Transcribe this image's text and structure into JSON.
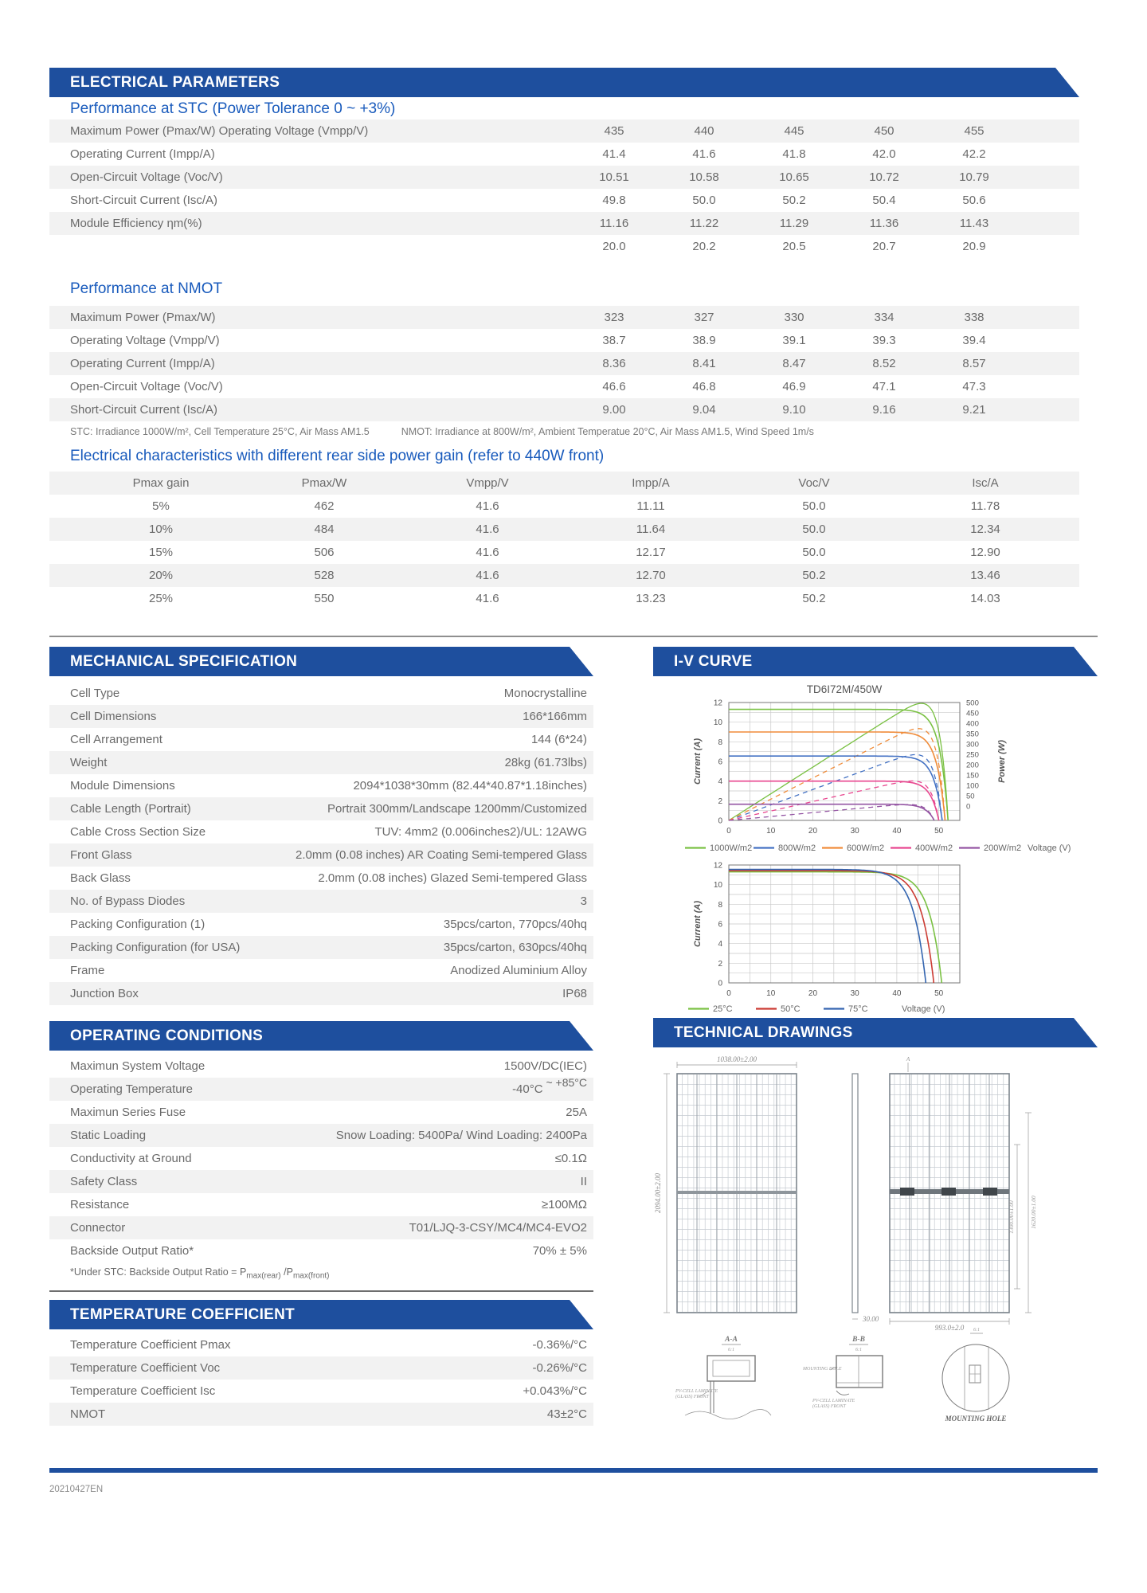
{
  "page": {
    "footer_code": "20210427EN"
  },
  "colors": {
    "banner_blue": "#1E4F9E",
    "heading_blue": "#185ABC",
    "stripe_gray": "#F2F2F2",
    "text_gray": "#6a6a6a",
    "curve_green": "#7AC143",
    "curve_blue": "#4472C4",
    "curve_orange": "#F08C3A",
    "curve_pink": "#E8468F",
    "curve_purple": "#9455A3",
    "curve_red": "#CC3B33",
    "curve_tblue": "#3465B0"
  },
  "electrical": {
    "banner": "ELECTRICAL PARAMETERS",
    "stc": {
      "heading": "Performance at STC (Power Tolerance 0 ~ +3%)",
      "rows": [
        {
          "label": "Maximum Power (Pmax/W) Operating Voltage (Vmpp/V)",
          "values": [
            "435",
            "440",
            "445",
            "450",
            "455"
          ]
        },
        {
          "label": "Operating Current (Impp/A)",
          "values": [
            "41.4",
            "41.6",
            "41.8",
            "42.0",
            "42.2"
          ]
        },
        {
          "label": "Open-Circuit Voltage (Voc/V)",
          "values": [
            "10.51",
            "10.58",
            "10.65",
            "10.72",
            "10.79"
          ]
        },
        {
          "label": "Short-Circuit Current (Isc/A)",
          "values": [
            "49.8",
            "50.0",
            "50.2",
            "50.4",
            "50.6"
          ]
        },
        {
          "label": "Module Efficiency ηm(%)",
          "values": [
            "11.16",
            "11.22",
            "11.29",
            "11.36",
            "11.43"
          ]
        },
        {
          "label": "",
          "values": [
            "20.0",
            "20.2",
            "20.5",
            "20.7",
            "20.9"
          ]
        }
      ]
    },
    "nmot": {
      "heading": "Performance at NMOT",
      "rows": [
        {
          "label": "Maximum Power (Pmax/W)",
          "values": [
            "323",
            "327",
            "330",
            "334",
            "338"
          ]
        },
        {
          "label": "Operating Voltage (Vmpp/V)",
          "values": [
            "38.7",
            "38.9",
            "39.1",
            "39.3",
            "39.4"
          ]
        },
        {
          "label": "Operating Current (Impp/A)",
          "values": [
            "8.36",
            "8.41",
            "8.47",
            "8.52",
            "8.57"
          ]
        },
        {
          "label": "Open-Circuit Voltage (Voc/V)",
          "values": [
            "46.6",
            "46.8",
            "46.9",
            "47.1",
            "47.3"
          ]
        },
        {
          "label": "Short-Circuit Current (Isc/A)",
          "values": [
            "9.00",
            "9.04",
            "9.10",
            "9.16",
            "9.21"
          ]
        }
      ]
    },
    "footnote_stc": "STC: Irradiance 1000W/m², Cell Temperature 25°C, Air Mass AM1.5",
    "footnote_nmot": "NMOT: Irradiance at 800W/m², Ambient Temperatue 20°C, Air Mass AM1.5, Wind Speed 1m/s",
    "gain": {
      "heading": "Electrical characteristics with different rear side power gain (refer to 440W front)",
      "headers": [
        "Pmax gain",
        "Pmax/W",
        "Vmpp/V",
        "Impp/A",
        "Voc/V",
        "Isc/A"
      ],
      "rows": [
        [
          "5%",
          "462",
          "41.6",
          "11.11",
          "50.0",
          "11.78"
        ],
        [
          "10%",
          "484",
          "41.6",
          "11.64",
          "50.0",
          "12.34"
        ],
        [
          "15%",
          "506",
          "41.6",
          "12.17",
          "50.0",
          "12.90"
        ],
        [
          "20%",
          "528",
          "41.6",
          "12.70",
          "50.2",
          "13.46"
        ],
        [
          "25%",
          "550",
          "41.6",
          "13.23",
          "50.2",
          "14.03"
        ]
      ]
    }
  },
  "mechanical": {
    "banner": "MECHANICAL SPECIFICATION",
    "rows": [
      {
        "label": "Cell Type",
        "value": "Monocrystalline"
      },
      {
        "label": "Cell Dimensions",
        "value": "166*166mm"
      },
      {
        "label": "Cell Arrangement",
        "value": "144 (6*24)"
      },
      {
        "label": "Weight",
        "value": "28kg (61.73lbs)"
      },
      {
        "label": "Module Dimensions",
        "value": "2094*1038*30mm (82.44*40.87*1.18inches)"
      },
      {
        "label": "Cable Length (Portrait)",
        "value": "Portrait 300mm/Landscape 1200mm/Customized"
      },
      {
        "label": "Cable Cross Section Size",
        "value": "TUV: 4mm2 (0.006inches2)/UL: 12AWG"
      },
      {
        "label": "Front Glass",
        "value": "2.0mm (0.08 inches) AR Coating Semi-tempered Glass"
      },
      {
        "label": "Back Glass",
        "value": "2.0mm (0.08 inches) Glazed Semi-tempered Glass"
      },
      {
        "label": "No. of Bypass Diodes",
        "value": "3"
      },
      {
        "label": "Packing Configuration (1)",
        "value": "35pcs/carton, 770pcs/40hq"
      },
      {
        "label": "Packing Configuration (for USA)",
        "value": "35pcs/carton, 630pcs/40hq"
      },
      {
        "label": "Frame",
        "value": "Anodized Aluminium Alloy"
      },
      {
        "label": "Junction Box",
        "value": "IP68"
      }
    ]
  },
  "operating": {
    "banner": "OPERATING CONDITIONS",
    "rows": [
      {
        "label": "Maximun System Voltage",
        "value": "1500V/DC(IEC)"
      },
      {
        "label": "Operating Temperature",
        "value": "-40°C",
        "value_raised": "~ +85°C"
      },
      {
        "label": "Maximun Series Fuse",
        "value": "25A"
      },
      {
        "label": "Static Loading",
        "value": "Snow Loading: 5400Pa/ Wind Loading: 2400Pa"
      },
      {
        "label": "Conductivity at Ground",
        "value": "≤0.1Ω"
      },
      {
        "label": "Safety Class",
        "value": "II"
      },
      {
        "label": "Resistance",
        "value": "≥100MΩ"
      },
      {
        "label": "Connector",
        "value": "T01/LJQ-3-CSY/MC4/MC4-EVO2"
      },
      {
        "label": "Backside Output Ratio*",
        "value": "70% ± 5%"
      }
    ],
    "footnote": {
      "prefix": "*Under STC: Backside Output Ratio = P",
      "sub1": "max(rear)",
      "mid": " /P",
      "sub2": "max(front)"
    }
  },
  "temperature": {
    "banner": "TEMPERATURE COEFFICIENT",
    "rows": [
      {
        "label": "Temperature Coefficient Pmax",
        "value": "-0.36%/°C"
      },
      {
        "label": "Temperature Coefficient Voc",
        "value": "-0.26%/°C"
      },
      {
        "label": "Temperature Coefficient Isc",
        "value": "+0.043%/°C"
      },
      {
        "label": "NMOT",
        "value": "43±2°C"
      }
    ]
  },
  "ivcurve": {
    "banner": "I-V CURVE"
  },
  "drawings": {
    "banner": "TECHNICAL DRAWINGS",
    "front_width_dim": "1038.00±2.00",
    "front_height_dim": "2094.00±2.00",
    "side_thickness_dim": "30.00",
    "rear_width_dim": "993.0±2.0",
    "rear_dim_inner": "1300.00±1.00",
    "rear_dim_outer": "1620.00±1.00",
    "section_marker": "A",
    "section_a_label": "A-A",
    "section_b_label": "B-B",
    "scale_label": "6:1",
    "mounting_hole_label": "MOUNTING HOLE",
    "mounting_hole_caption": "MOUNTING HOLE",
    "laminate_note_line1": "PV-CELL LAMINATE",
    "laminate_note_line2": "(GLASS) FRONT"
  },
  "chart_data": [
    {
      "type": "line",
      "title": "TD6I72M/450W",
      "xlabel": "Voltage (V)",
      "ylabel": "Current (A)",
      "y2label": "Power (W)",
      "xlim": [
        0,
        55
      ],
      "ylim": [
        0,
        12
      ],
      "y2lim": [
        0,
        500
      ],
      "xticks": [
        0,
        10,
        20,
        30,
        40,
        50
      ],
      "yticks": [
        0,
        2,
        4,
        6,
        8,
        10,
        12
      ],
      "y2ticks": [
        500,
        450,
        400,
        350,
        300,
        250,
        200,
        150,
        100,
        50,
        0
      ],
      "grid": true,
      "legend_position": "bottom",
      "knee": 2.0,
      "show_power": true,
      "series": [
        {
          "name": "1000W/m2",
          "color": "#7AC143",
          "isc": 11.3,
          "voc": 52.2,
          "power_solid": true
        },
        {
          "name": "800W/m2",
          "color": "#4472C4",
          "isc": 6.55,
          "voc": 50.8,
          "power_solid": false
        },
        {
          "name": "600W/m2",
          "color": "#F08C3A",
          "isc": 9.0,
          "voc": 51.5,
          "power_solid": false
        },
        {
          "name": "400W/m2",
          "color": "#E8468F",
          "isc": 4.0,
          "voc": 50.0,
          "power_solid": false
        },
        {
          "name": "200W/m2",
          "color": "#9455A3",
          "isc": 1.65,
          "voc": 48.9,
          "power_solid": false
        }
      ]
    },
    {
      "type": "line",
      "title": "",
      "xlabel": "Voltage (V)",
      "ylabel": "Current (A)",
      "xlim": [
        0,
        55
      ],
      "ylim": [
        0,
        12
      ],
      "xticks": [
        0,
        10,
        20,
        30,
        40,
        50
      ],
      "yticks": [
        0,
        2,
        4,
        6,
        8,
        10,
        12
      ],
      "grid": true,
      "legend_position": "bottom",
      "knee": 3.0,
      "show_power": false,
      "series": [
        {
          "name": "25°C",
          "color": "#7AC143",
          "isc": 11.3,
          "voc": 50.7
        },
        {
          "name": "50°C",
          "color": "#CC3B33",
          "isc": 11.42,
          "voc": 48.8
        },
        {
          "name": "75°C",
          "color": "#3465B0",
          "isc": 11.55,
          "voc": 46.9
        }
      ]
    }
  ]
}
